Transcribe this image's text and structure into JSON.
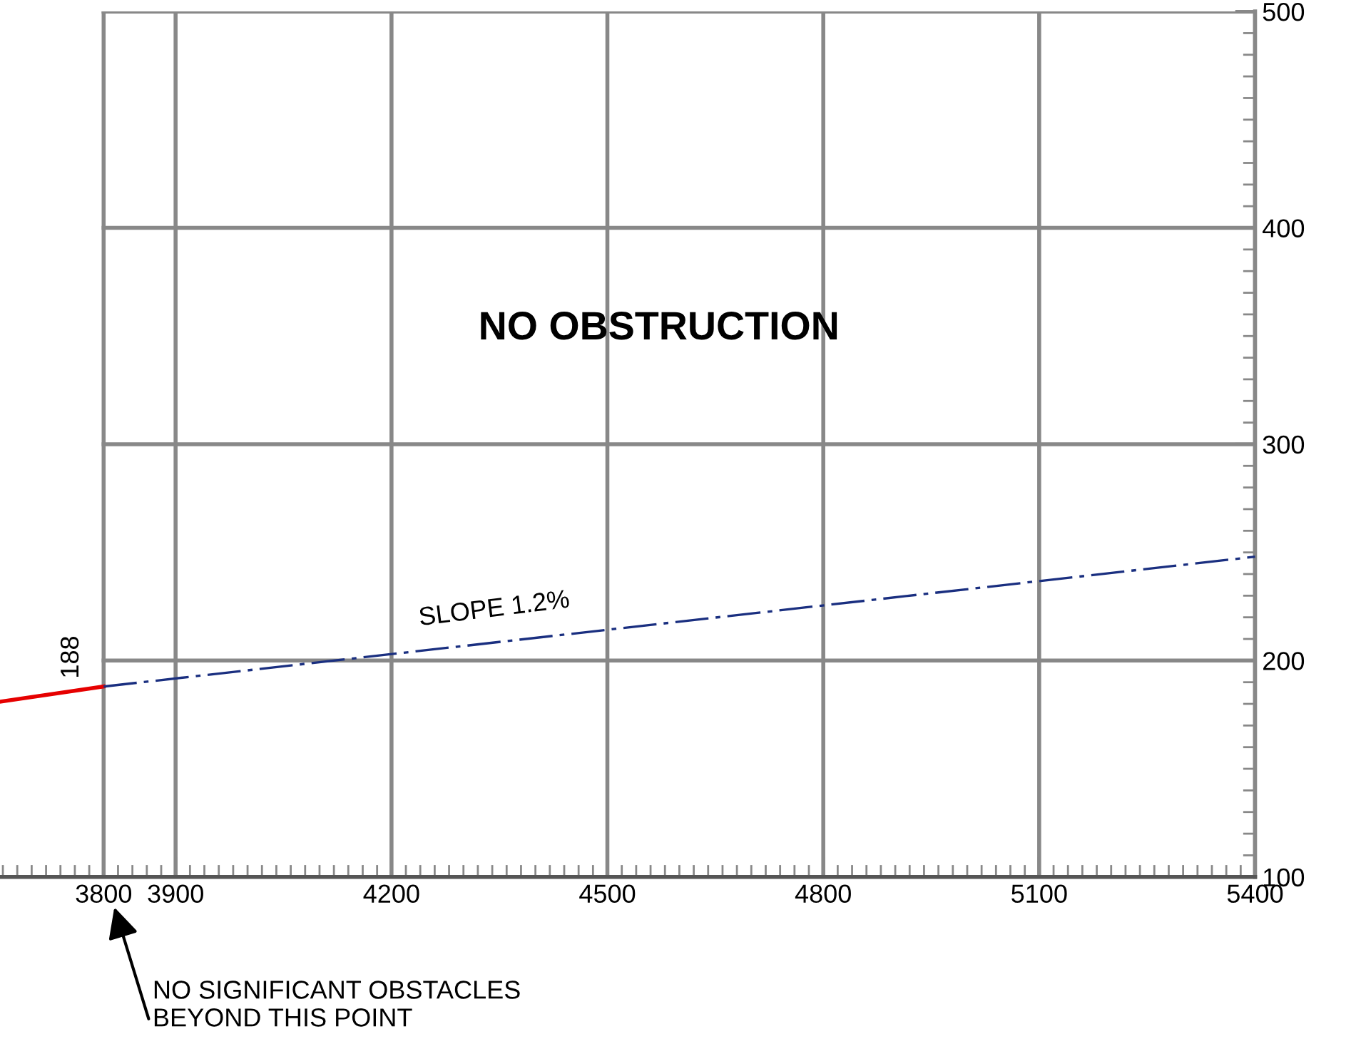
{
  "chart_data": {
    "type": "line",
    "xlim": [
      3656,
      5400
    ],
    "ylim": [
      100,
      500
    ],
    "xticks": [
      3800,
      3900,
      4200,
      4500,
      4800,
      5100,
      5400
    ],
    "yticks": [
      100,
      200,
      300,
      400,
      500
    ],
    "grid": true,
    "series": [
      {
        "color": "#e60000",
        "x": [
          3656,
          3800
        ],
        "values": [
          181,
          188
        ]
      },
      {
        "color": "#1a2f80",
        "x": [
          3800,
          5400
        ],
        "values": [
          188,
          248
        ],
        "line_style": "dashdot"
      }
    ],
    "annotations": [
      "NO OBSTRUCTION",
      "SLOPE 1.2%",
      {
        "text": "188",
        "x": 3800,
        "y": 188
      },
      "NO SIGNIFICANT OBSTACLES\nBEYOND THIS POINT"
    ]
  }
}
